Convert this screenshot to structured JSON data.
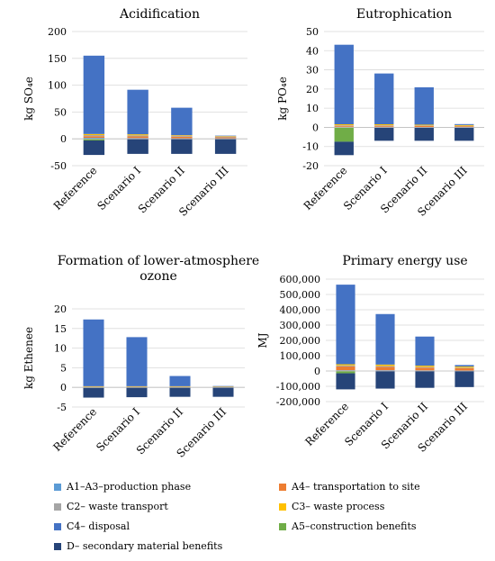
{
  "chart_data": [
    {
      "type": "bar",
      "title": "Acidification",
      "ylabel": "kg SO₄e",
      "categories": [
        "Reference",
        "Scenario I",
        "Scenario II",
        "Scenario III"
      ],
      "yticks": [
        "-50",
        "0",
        "50",
        "100",
        "150",
        "200"
      ],
      "ylim": [
        -50,
        200
      ],
      "series": [
        {
          "name": "A1–A3–production phase",
          "values": [
            2,
            1.5,
            1,
            1
          ]
        },
        {
          "name": "A4– transportation to site",
          "values": [
            3,
            3,
            3,
            2
          ]
        },
        {
          "name": "C2– waste transport",
          "values": [
            2,
            2,
            2,
            1
          ]
        },
        {
          "name": "C3– waste process",
          "values": [
            2,
            2,
            1,
            1
          ]
        },
        {
          "name": "C4– disposal",
          "values": [
            146,
            83,
            51,
            1
          ]
        },
        {
          "name": "A5–construction benefits",
          "values": [
            -3,
            0,
            0,
            0
          ]
        },
        {
          "name": "D– secondary material benefits",
          "values": [
            -27,
            -28,
            -28,
            -28
          ]
        }
      ]
    },
    {
      "type": "bar",
      "title": "Eutrophication",
      "ylabel": "kg PO₄e",
      "categories": [
        "Reference",
        "Scenario I",
        "Scenario II",
        "Scenario III"
      ],
      "yticks": [
        "-20",
        "-10",
        "0",
        "10",
        "20",
        "30",
        "40",
        "50"
      ],
      "ylim": [
        -20,
        50
      ],
      "series": [
        {
          "name": "A1–A3–production phase",
          "values": [
            0.3,
            0.3,
            0.2,
            0.2
          ]
        },
        {
          "name": "A4– transportation to site",
          "values": [
            0.5,
            0.5,
            0.5,
            0.4
          ]
        },
        {
          "name": "C2– waste transport",
          "values": [
            0.3,
            0.3,
            0.3,
            0.2
          ]
        },
        {
          "name": "C3– waste process",
          "values": [
            0.5,
            0.5,
            0.4,
            0.4
          ]
        },
        {
          "name": "C4– disposal",
          "values": [
            41.5,
            26.5,
            19.5,
            0.5
          ]
        },
        {
          "name": "A5–construction benefits",
          "values": [
            -7.5,
            0,
            0,
            0
          ]
        },
        {
          "name": "D– secondary material benefits",
          "values": [
            -7,
            -7,
            -7,
            -7
          ]
        }
      ]
    },
    {
      "type": "bar",
      "title": "Formation of  lower-atmosphere ozone",
      "ylabel": "kg Ethenee",
      "categories": [
        "Reference",
        "Scenario I",
        "Scenario II",
        "Scenario III"
      ],
      "yticks": [
        "-5",
        "0",
        "5",
        "10",
        "15",
        "20"
      ],
      "ylim": [
        -5,
        20
      ],
      "series": [
        {
          "name": "A1–A3–production phase",
          "values": [
            0.05,
            0.05,
            0.05,
            0.05
          ]
        },
        {
          "name": "A4– transportation to site",
          "values": [
            0.1,
            0.1,
            0.1,
            0.1
          ]
        },
        {
          "name": "C2– waste transport",
          "values": [
            0.05,
            0.05,
            0.05,
            0.05
          ]
        },
        {
          "name": "C3– waste process",
          "values": [
            0.1,
            0.1,
            0.1,
            0.05
          ]
        },
        {
          "name": "C4– disposal",
          "values": [
            17,
            12.5,
            2.6,
            0.1
          ]
        },
        {
          "name": "A5–construction benefits",
          "values": [
            -0.1,
            0,
            0,
            0
          ]
        },
        {
          "name": "D– secondary material benefits",
          "values": [
            -2.5,
            -2.5,
            -2.4,
            -2.4
          ]
        }
      ]
    },
    {
      "type": "bar",
      "title": "Primary energy use",
      "ylabel": "MJ",
      "categories": [
        "Reference",
        "Scenario I",
        "Scenario II",
        "Scenario III"
      ],
      "yticks": [
        "-200,000",
        "-100,000",
        "0",
        "100,000",
        "200,000",
        "300,000",
        "400,000",
        "500,000",
        "600,000"
      ],
      "ylim": [
        -200000,
        600000
      ],
      "series": [
        {
          "name": "A1–A3–production phase",
          "values": [
            5000,
            5000,
            4000,
            3000
          ]
        },
        {
          "name": "A4– transportation to site",
          "values": [
            25000,
            22000,
            18000,
            15000
          ]
        },
        {
          "name": "C2– waste transport",
          "values": [
            6000,
            6000,
            5000,
            4000
          ]
        },
        {
          "name": "C3– waste process",
          "values": [
            8000,
            9000,
            8000,
            7000
          ]
        },
        {
          "name": "C4– disposal",
          "values": [
            520000,
            330000,
            190000,
            10000
          ]
        },
        {
          "name": "A5–construction benefits",
          "values": [
            -15000,
            0,
            0,
            0
          ]
        },
        {
          "name": "D– secondary material benefits",
          "values": [
            -105000,
            -115000,
            -110000,
            -105000
          ]
        }
      ]
    }
  ],
  "legend": [
    {
      "label": "A1–A3–production phase",
      "color": "#5b9bd5"
    },
    {
      "label": "A4– transportation to site",
      "color": "#ed7d31"
    },
    {
      "label": "C2– waste transport",
      "color": "#a5a5a5"
    },
    {
      "label": "C3– waste process",
      "color": "#ffc000"
    },
    {
      "label": "C4– disposal",
      "color": "#4472c4"
    },
    {
      "label": "A5–construction benefits",
      "color": "#70ad47"
    },
    {
      "label": "D– secondary material benefits",
      "color": "#264478"
    }
  ]
}
